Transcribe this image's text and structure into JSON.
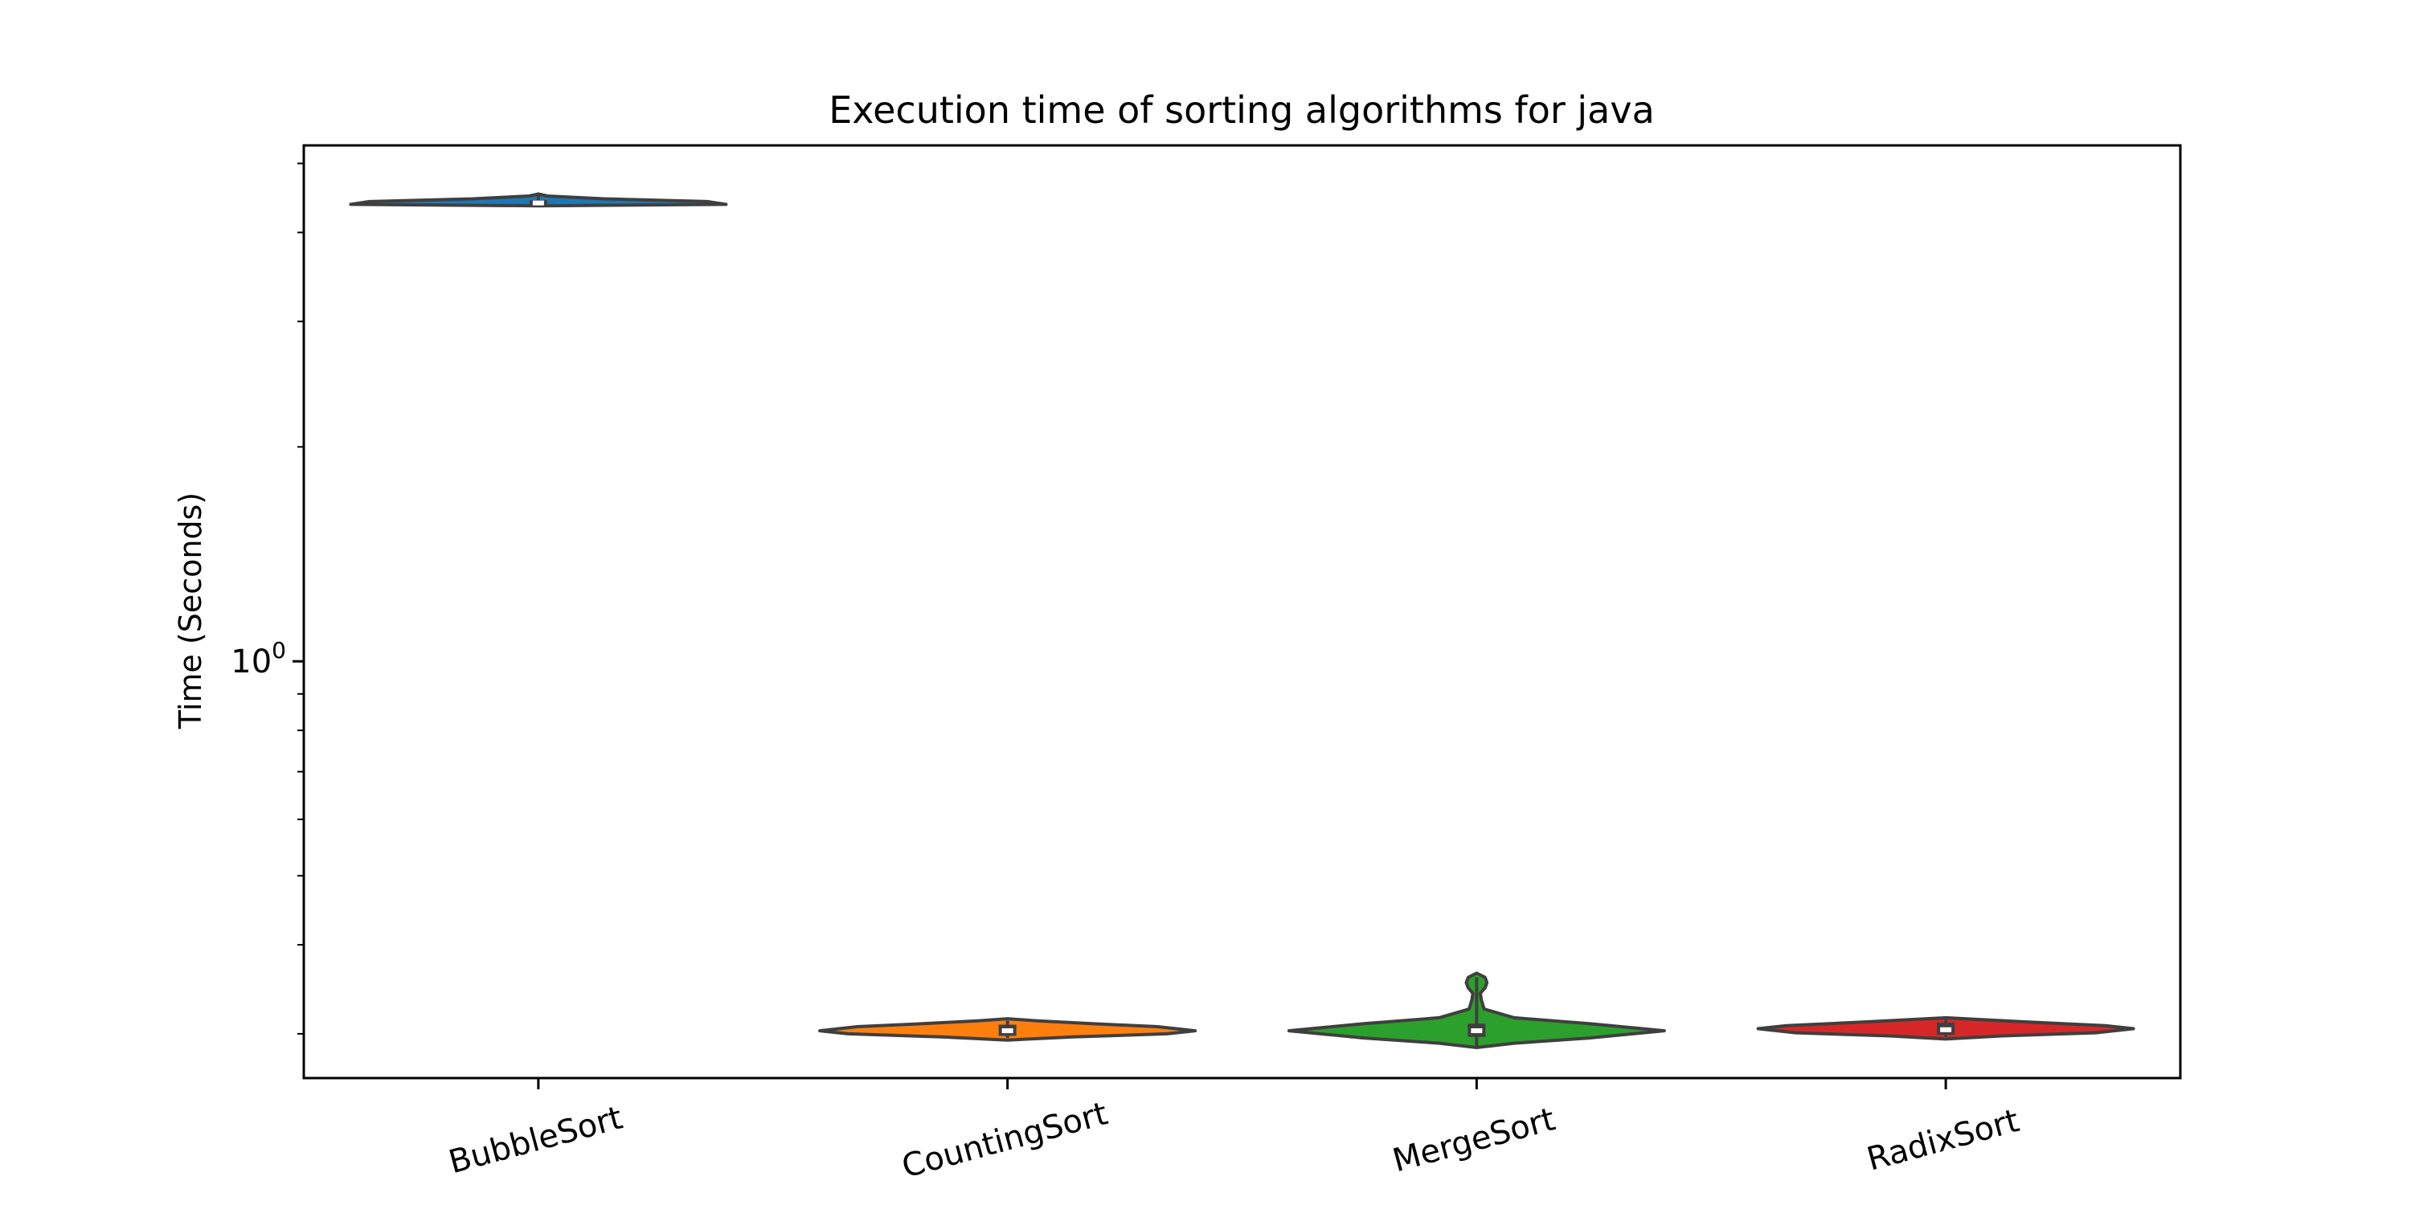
{
  "chart_data": {
    "type": "violin",
    "title": "Execution time of sorting algorithms for java",
    "xlabel": "",
    "ylabel": "Time (Seconds)",
    "yscale": "log",
    "ylim": [
      0.26,
      5.3
    ],
    "yticks": [
      {
        "base": "10",
        "exp": "0",
        "value": 1.0
      }
    ],
    "grid": false,
    "categories": [
      "BubbleSort",
      "CountingSort",
      "MergeSort",
      "RadixSort"
    ],
    "series": [
      {
        "category": "BubbleSort",
        "color": "#1f77b4",
        "median": 4.4,
        "q1": 4.38,
        "q3": 4.44,
        "whisker_low": 4.36,
        "whisker_high": 4.52,
        "width_scale": 1.0,
        "profile": [
          [
            4.36,
            0.0
          ],
          [
            4.38,
            1.0
          ],
          [
            4.42,
            0.9
          ],
          [
            4.46,
            0.35
          ],
          [
            4.5,
            0.05
          ],
          [
            4.53,
            0.0
          ]
        ],
        "outlier_bulbs": [
          [
            4.52,
            0.05
          ]
        ]
      },
      {
        "category": "CountingSort",
        "color": "#ff7f0e",
        "median": 0.303,
        "q1": 0.298,
        "q3": 0.309,
        "whisker_low": 0.296,
        "whisker_high": 0.313,
        "width_scale": 1.0,
        "profile": [
          [
            0.294,
            0.0
          ],
          [
            0.297,
            0.35
          ],
          [
            0.3,
            0.85
          ],
          [
            0.303,
            1.0
          ],
          [
            0.307,
            0.8
          ],
          [
            0.31,
            0.45
          ],
          [
            0.313,
            0.15
          ],
          [
            0.315,
            0.0
          ]
        ],
        "outlier_bulbs": []
      },
      {
        "category": "MergeSort",
        "color": "#2ca02c",
        "median": 0.303,
        "q1": 0.297,
        "q3": 0.31,
        "whisker_low": 0.288,
        "whisker_high": 0.36,
        "width_scale": 1.0,
        "profile": [
          [
            0.287,
            0.0
          ],
          [
            0.291,
            0.2
          ],
          [
            0.296,
            0.6
          ],
          [
            0.303,
            1.0
          ],
          [
            0.31,
            0.6
          ],
          [
            0.316,
            0.2
          ],
          [
            0.325,
            0.04
          ],
          [
            0.335,
            0.025
          ],
          [
            0.342,
            0.02
          ],
          [
            0.348,
            0.045
          ],
          [
            0.354,
            0.055
          ],
          [
            0.36,
            0.045
          ],
          [
            0.365,
            0.0
          ]
        ],
        "outlier_bulbs": []
      },
      {
        "category": "RadixSort",
        "color": "#d62728",
        "median": 0.304,
        "q1": 0.299,
        "q3": 0.311,
        "whisker_low": 0.297,
        "whisker_high": 0.314,
        "width_scale": 1.0,
        "profile": [
          [
            0.295,
            0.0
          ],
          [
            0.298,
            0.3
          ],
          [
            0.301,
            0.8
          ],
          [
            0.305,
            1.0
          ],
          [
            0.308,
            0.85
          ],
          [
            0.312,
            0.4
          ],
          [
            0.316,
            0.0
          ]
        ],
        "outlier_bulbs": []
      }
    ]
  }
}
